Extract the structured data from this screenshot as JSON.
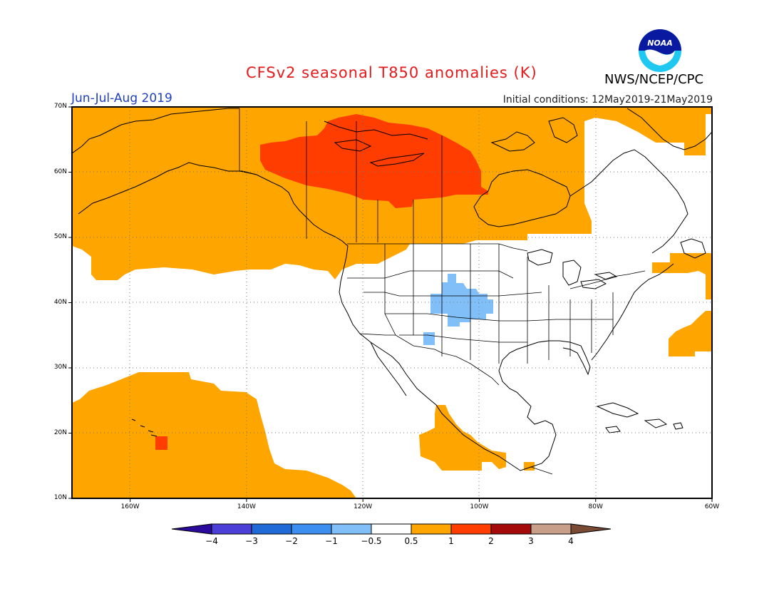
{
  "title": "CFSv2 seasonal T850 anomalies (K)",
  "agency": "NWS/NCEP/CPC",
  "logo_text": "NOAA",
  "season": "Jun-Jul-Aug 2019",
  "initial_conditions": "Initial conditions: 12May2019-21May2019",
  "lat_ticks": [
    {
      "label": "70N",
      "lat": 70
    },
    {
      "label": "60N",
      "lat": 60
    },
    {
      "label": "50N",
      "lat": 50
    },
    {
      "label": "40N",
      "lat": 40
    },
    {
      "label": "30N",
      "lat": 30
    },
    {
      "label": "20N",
      "lat": 20
    },
    {
      "label": "10N",
      "lat": 10
    }
  ],
  "lon_ticks": [
    {
      "label": "160W",
      "lon": -160
    },
    {
      "label": "140W",
      "lon": -140
    },
    {
      "label": "120W",
      "lon": -120
    },
    {
      "label": "100W",
      "lon": -100
    },
    {
      "label": "80W",
      "lon": -80
    },
    {
      "label": "60W",
      "lon": -60
    }
  ],
  "colorbar": {
    "colors": [
      "#2a0a9c",
      "#4b3fd8",
      "#1f6ad6",
      "#3c8ef0",
      "#80bff8",
      "#ffffff",
      "#ffa500",
      "#ff3d00",
      "#a50a0a",
      "#c8a08a",
      "#7a4a35"
    ],
    "labels": [
      "−4",
      "−3",
      "−2",
      "−1",
      "−0.5",
      "0.5",
      "1",
      "2",
      "3",
      "4"
    ]
  }
}
